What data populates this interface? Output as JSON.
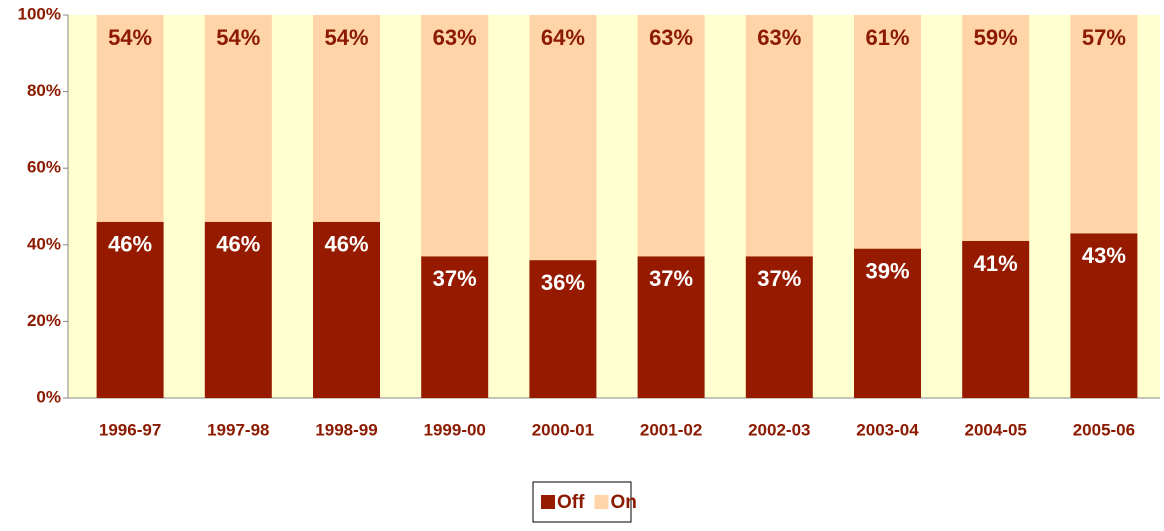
{
  "chart_data": {
    "type": "stacked_bar",
    "categories": [
      "1996-97",
      "1997-98",
      "1998-99",
      "1999-00",
      "2000-01",
      "2001-02",
      "2002-03",
      "2003-04",
      "2004-05",
      "2005-06"
    ],
    "series": [
      {
        "name": "Off",
        "color": "#951a00",
        "values": [
          46,
          46,
          46,
          37,
          36,
          37,
          37,
          39,
          41,
          43
        ],
        "value_labels": [
          "46%",
          "46%",
          "46%",
          "37%",
          "36%",
          "37%",
          "37%",
          "39%",
          "41%",
          "43%"
        ]
      },
      {
        "name": "On",
        "color": "#ffd4a8",
        "values": [
          54,
          54,
          54,
          63,
          64,
          63,
          63,
          61,
          59,
          57
        ],
        "value_labels": [
          "54%",
          "54%",
          "54%",
          "63%",
          "64%",
          "63%",
          "63%",
          "61%",
          "59%",
          "57%"
        ]
      }
    ],
    "ylim": [
      0,
      100
    ],
    "yticks": [
      {
        "value": 0,
        "label": "0%"
      },
      {
        "value": 20,
        "label": "20%"
      },
      {
        "value": 40,
        "label": "40%"
      },
      {
        "value": 60,
        "label": "60%"
      },
      {
        "value": 80,
        "label": "80%"
      },
      {
        "value": 100,
        "label": "100%"
      }
    ],
    "grid": false,
    "legend": "bottom"
  }
}
